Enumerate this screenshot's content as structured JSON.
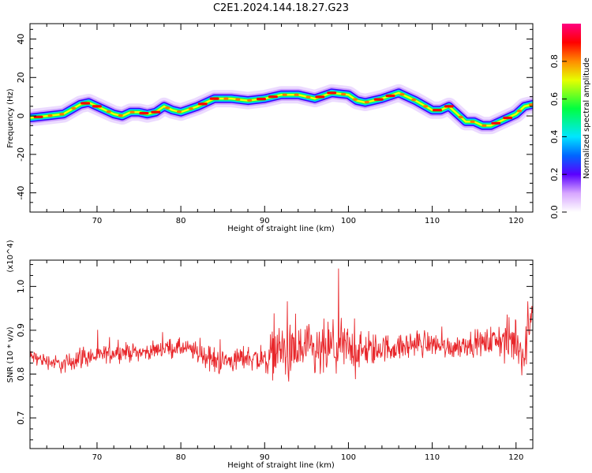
{
  "title": "C2E1.2024.144.18.27.G23",
  "chart_data": [
    {
      "type": "heatmap",
      "xlabel": "Height of straight line (km)",
      "ylabel": "Frequency (Hz)",
      "xlim": [
        62,
        122
      ],
      "ylim": [
        -50,
        48
      ],
      "xticks": [
        70,
        80,
        90,
        100,
        110,
        120
      ],
      "yticks": [
        -40,
        -20,
        0,
        20,
        40
      ],
      "colorbar": {
        "label": "Normalized spectral amplitude",
        "range": [
          0.0,
          1.0
        ],
        "ticks": [
          0.0,
          0.2,
          0.4,
          0.6,
          0.8
        ],
        "colormap": "rainbow (white-violet-blue-cyan-green-yellow-red-magenta)"
      },
      "ridge": {
        "name": "frequency ridge",
        "x": [
          62,
          64,
          66,
          68,
          69,
          70,
          72,
          73,
          74,
          75,
          76,
          77,
          78,
          79,
          80,
          82,
          84,
          86,
          88,
          90,
          92,
          94,
          96,
          98,
          100,
          101,
          102,
          104,
          106,
          108,
          110,
          111,
          112,
          113,
          114,
          115,
          116,
          117,
          118,
          119,
          120,
          121,
          122
        ],
        "y": [
          -1,
          0,
          1,
          6,
          7,
          5,
          1,
          0,
          2,
          2,
          1,
          2,
          5,
          3,
          2,
          5,
          9,
          9,
          8,
          9,
          11,
          11,
          9,
          12,
          11,
          8,
          7,
          9,
          12,
          8,
          3,
          3,
          5,
          1,
          -3,
          -3,
          -5,
          -5,
          -3,
          -1,
          1,
          5,
          6
        ]
      }
    },
    {
      "type": "line",
      "xlabel": "Height of straight line (km)",
      "ylabel": "SNR (10 * v/v)",
      "y_multiplier": "(x10^4)",
      "xlim": [
        62,
        122
      ],
      "ylim": [
        0.63,
        1.06
      ],
      "xticks": [
        70,
        80,
        90,
        100,
        110,
        120
      ],
      "yticks": [
        0.7,
        0.8,
        0.9,
        1.0
      ],
      "series": [
        {
          "name": "SNR",
          "color": "#e8262a",
          "x": [
            62,
            64,
            66,
            68,
            70,
            72,
            74,
            76,
            78,
            80,
            82,
            84,
            86,
            88,
            90,
            91,
            92,
            93,
            94,
            95,
            96,
            97,
            98,
            99,
            100,
            102,
            104,
            106,
            108,
            110,
            112,
            114,
            116,
            118,
            119,
            120,
            121,
            122
          ],
          "y": [
            0.84,
            0.83,
            0.82,
            0.84,
            0.84,
            0.85,
            0.85,
            0.85,
            0.86,
            0.86,
            0.85,
            0.83,
            0.83,
            0.84,
            0.83,
            0.85,
            0.86,
            0.84,
            0.85,
            0.86,
            0.84,
            0.85,
            0.86,
            0.86,
            0.86,
            0.85,
            0.86,
            0.86,
            0.87,
            0.87,
            0.86,
            0.87,
            0.87,
            0.88,
            0.87,
            0.88,
            0.84,
            0.97
          ],
          "spread": [
            0.025,
            0.025,
            0.03,
            0.04,
            0.03,
            0.03,
            0.03,
            0.025,
            0.03,
            0.03,
            0.035,
            0.045,
            0.04,
            0.04,
            0.05,
            0.08,
            0.09,
            0.1,
            0.1,
            0.08,
            0.09,
            0.1,
            0.09,
            0.1,
            0.08,
            0.06,
            0.05,
            0.04,
            0.05,
            0.04,
            0.04,
            0.04,
            0.04,
            0.06,
            0.08,
            0.09,
            0.08,
            0.05
          ]
        }
      ]
    }
  ]
}
